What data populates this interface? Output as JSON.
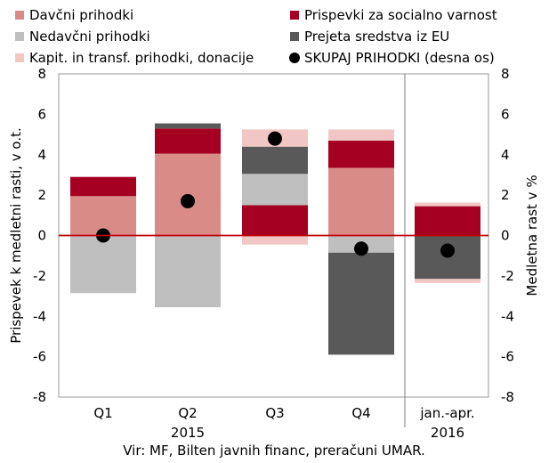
{
  "chart_data": {
    "type": "bar",
    "stacked": true,
    "categories": [
      "Q1",
      "Q2",
      "Q3",
      "Q4",
      "jan.-apr."
    ],
    "year_labels": [
      "2015",
      "2016"
    ],
    "series": [
      {
        "name": "Davčni prihodki",
        "color": "#d98b88",
        "values": [
          1.95,
          4.05,
          0.0,
          3.35,
          0.0
        ]
      },
      {
        "name": "Prispevki za socialno varnost",
        "color": "#a50021",
        "values": [
          0.95,
          1.25,
          1.5,
          1.35,
          1.45
        ]
      },
      {
        "name": "Nedavčni prihodki",
        "color": "#bfbfbf",
        "values": [
          -2.85,
          -3.55,
          1.55,
          -0.85,
          0.0
        ]
      },
      {
        "name": "Prejeta sredstva iz EU",
        "color": "#595959",
        "values": [
          0.0,
          0.25,
          1.35,
          -5.05,
          -2.15
        ]
      },
      {
        "name": "Kapit. in transf. prihodki, donacije",
        "color": "#f2c6c4",
        "values": [
          0.0,
          0.0,
          0.85,
          0.55,
          0.18
        ]
      },
      {
        "name": "SKUPAJ PRIHODKI (desna os)",
        "color": "#000000",
        "type": "scatter",
        "values": [
          0.0,
          1.7,
          4.8,
          -0.65,
          -0.75
        ]
      }
    ],
    "extra_segments": [
      {
        "category": "Q3",
        "series": "Kapit. in transf. prihodki, donacije",
        "value": -0.45
      },
      {
        "category": "jan.-apr.",
        "series": "Kapit. in transf. prihodki, donacije",
        "value": -0.2
      }
    ],
    "ylabel": "Prispevek k medletni rasti, v o.t.",
    "ylabel_right": "Medletna rast v %",
    "ylim": [
      -8,
      8
    ],
    "ylim_right": [
      -8,
      8
    ],
    "yticks": [
      "8",
      "6",
      "4",
      "2",
      "0",
      "-2",
      "-4",
      "-6",
      "-8"
    ],
    "zero_line_color": "#c00000",
    "legend_placement": "top",
    "grid": false
  },
  "source": "Vir: MF, Bilten javnih financ, preračuni UMAR."
}
